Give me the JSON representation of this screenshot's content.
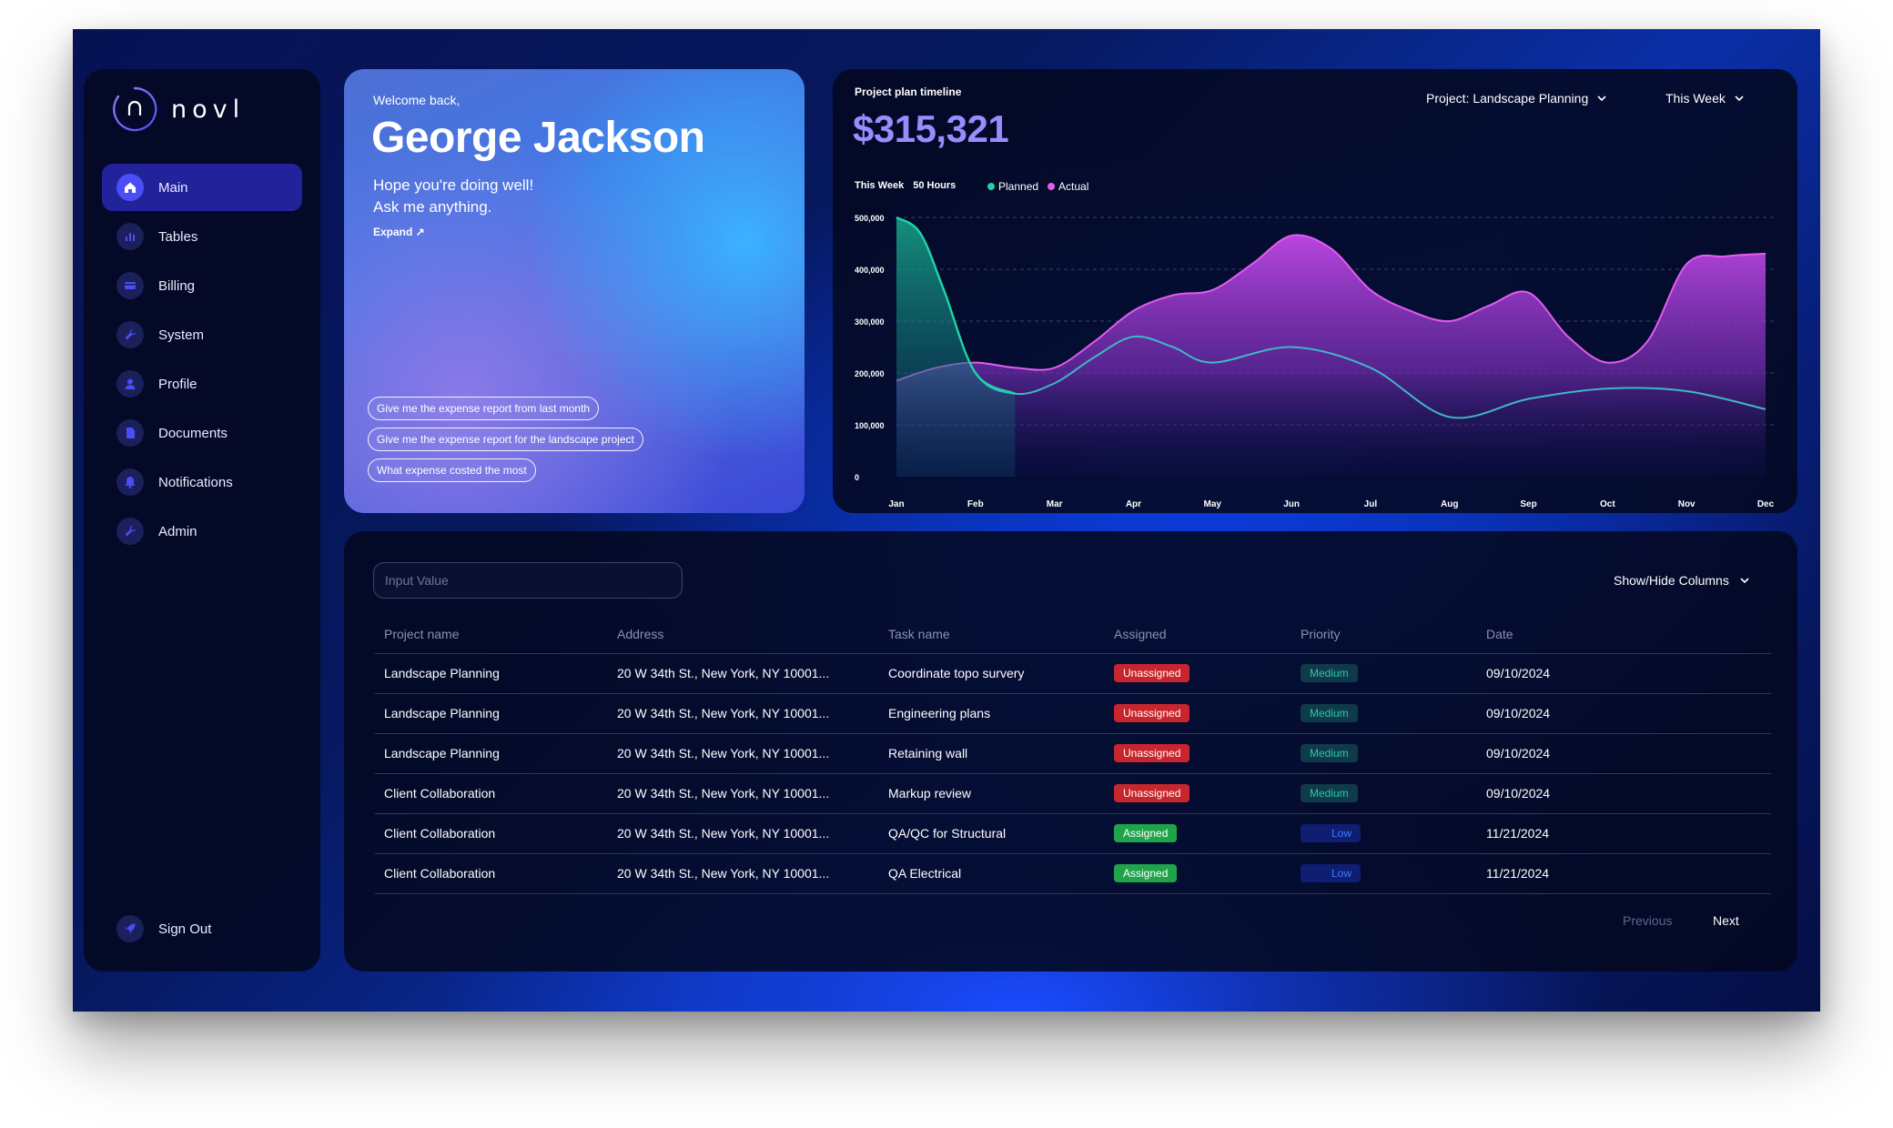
{
  "brand": {
    "name": "novl",
    "logo_letter": "n"
  },
  "sidebar": {
    "items": [
      {
        "label": "Main",
        "icon": "home-icon"
      },
      {
        "label": "Tables",
        "icon": "bar-chart-icon"
      },
      {
        "label": "Billing",
        "icon": "credit-card-icon"
      },
      {
        "label": "System",
        "icon": "wrench-icon"
      },
      {
        "label": "Profile",
        "icon": "user-icon"
      },
      {
        "label": "Documents",
        "icon": "document-icon"
      },
      {
        "label": "Notifications",
        "icon": "bell-icon"
      },
      {
        "label": "Admin",
        "icon": "wrench-icon"
      }
    ],
    "signout": "Sign Out"
  },
  "welcome": {
    "greeting": "Welcome back,",
    "name": "George Jackson",
    "line1": "Hope you're doing well!",
    "line2": "Ask me anything.",
    "expand": "Expand ↗",
    "suggestions": [
      "Give me the expense report from last month",
      "Give me the expense report for the landscape project",
      "What expense costed the most"
    ]
  },
  "chart_panel": {
    "title": "Project plan timeline",
    "amount": "$315,321",
    "project_dropdown": "Project: Landscape Planning",
    "period_dropdown": "This Week",
    "week_label": "This Week",
    "hours_label": "50 Hours"
  },
  "chart_data": {
    "type": "area",
    "categories": [
      "Jan",
      "Feb",
      "Mar",
      "Apr",
      "May",
      "Jun",
      "Jul",
      "Aug",
      "Sep",
      "Oct",
      "Nov",
      "Dec"
    ],
    "ylim": [
      0,
      500000
    ],
    "y_ticks": [
      "0",
      "100,000",
      "200,000",
      "300,000",
      "400,000",
      "500,000"
    ],
    "grid": true,
    "legend_placement": "top-left",
    "series": [
      {
        "name": "Planned",
        "color": "#1fd3a6",
        "x": [
          0,
          0.3,
          0.6,
          1,
          1.5,
          2,
          2.5,
          3,
          3.5,
          4,
          5,
          6,
          7,
          8,
          9,
          10,
          11
        ],
        "values": [
          500000,
          470000,
          360000,
          200000,
          160000,
          180000,
          230000,
          270000,
          250000,
          220000,
          250000,
          210000,
          115000,
          150000,
          170000,
          165000,
          130000
        ]
      },
      {
        "name": "Actual",
        "color": "#e35cf0",
        "x": [
          0,
          0.5,
          1,
          1.5,
          2,
          2.5,
          3,
          3.5,
          4,
          4.5,
          5,
          5.5,
          6,
          6.5,
          7,
          7.5,
          8,
          8.5,
          9,
          9.5,
          10,
          10.5,
          11
        ],
        "values": [
          185000,
          210000,
          220000,
          210000,
          210000,
          260000,
          320000,
          350000,
          360000,
          410000,
          465000,
          440000,
          360000,
          320000,
          300000,
          330000,
          355000,
          270000,
          220000,
          260000,
          410000,
          425000,
          430000
        ]
      }
    ]
  },
  "table": {
    "search_placeholder": "Input Value",
    "show_hide": "Show/Hide Columns",
    "headers": [
      "Project name",
      "Address",
      "Task name",
      "Assigned",
      "Priority",
      "Date"
    ],
    "rows": [
      {
        "project": "Landscape Planning",
        "address": "20 W 34th St., New York, NY 10001...",
        "task": "Coordinate topo survery",
        "assigned": "Unassigned",
        "priority": "Medium",
        "date": "09/10/2024"
      },
      {
        "project": "Landscape Planning",
        "address": "20 W 34th St., New York, NY 10001...",
        "task": "Engineering plans",
        "assigned": "Unassigned",
        "priority": "Medium",
        "date": "09/10/2024"
      },
      {
        "project": "Landscape Planning",
        "address": "20 W 34th St., New York, NY 10001...",
        "task": "Retaining wall",
        "assigned": "Unassigned",
        "priority": "Medium",
        "date": "09/10/2024"
      },
      {
        "project": "Client Collaboration",
        "address": "20 W 34th St., New York, NY 10001...",
        "task": "Markup review",
        "assigned": "Unassigned",
        "priority": "Medium",
        "date": "09/10/2024"
      },
      {
        "project": "Client Collaboration",
        "address": "20 W 34th St., New York, NY 10001...",
        "task": "QA/QC for Structural",
        "assigned": "Assigned",
        "priority": "Low",
        "date": "11/21/2024"
      },
      {
        "project": "Client Collaboration",
        "address": "20 W 34th St., New York, NY 10001...",
        "task": "QA Electrical",
        "assigned": "Assigned",
        "priority": "Low",
        "date": "11/21/2024"
      }
    ],
    "prev": "Previous",
    "next": "Next"
  }
}
